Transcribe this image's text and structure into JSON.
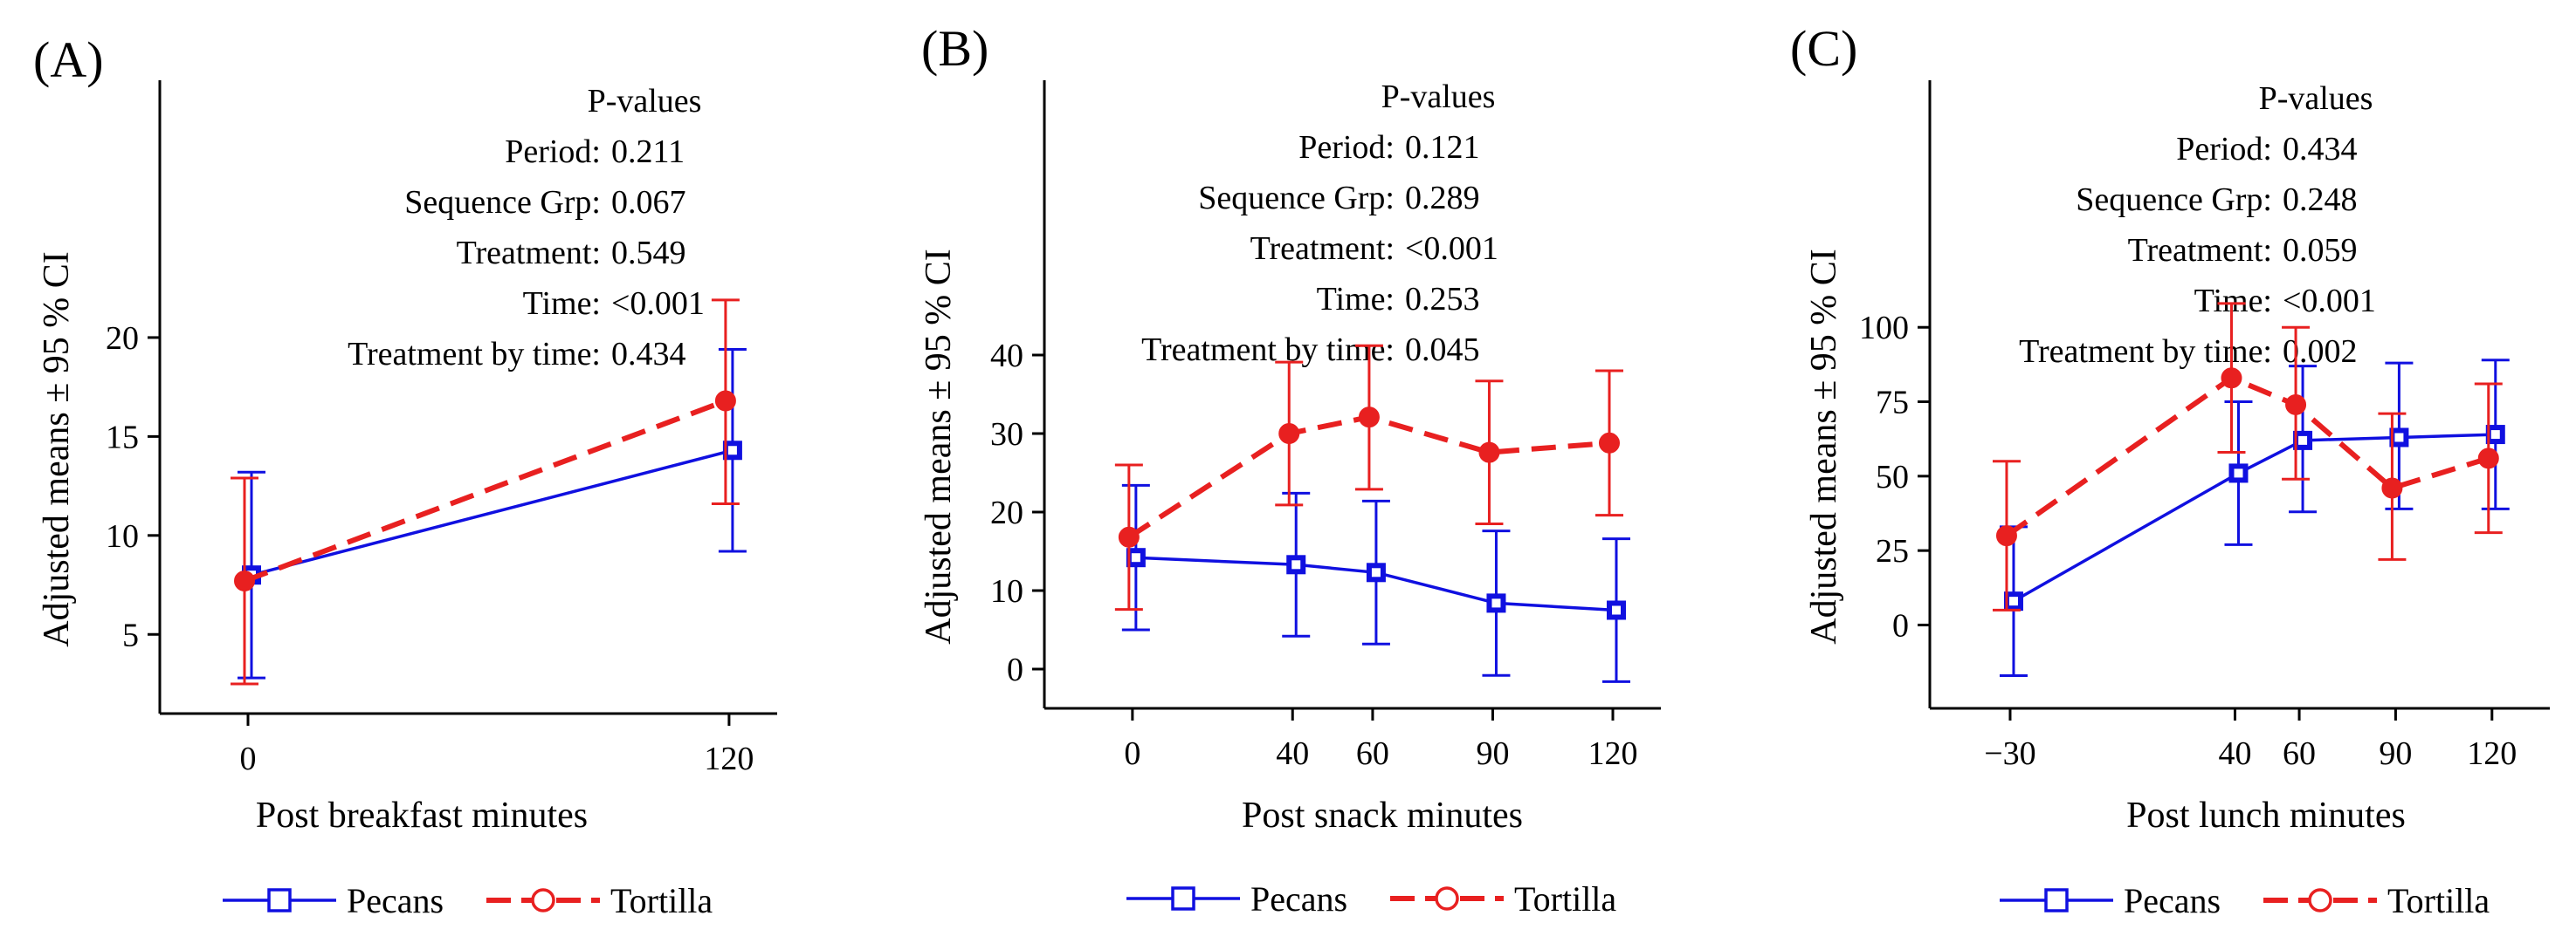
{
  "legend": {
    "series_colors": {
      "Pecans": "#1010e0",
      "Tortilla": "#e82020"
    }
  },
  "chart_data": [
    {
      "type": "line",
      "panel_label": "(A)",
      "xlabel": "Post breakfast minutes",
      "ylabel": "Adjusted means ± 95 % CI",
      "x": [
        0,
        120
      ],
      "x_ticks": [
        0,
        120
      ],
      "x_tick_labels": [
        "0",
        "120"
      ],
      "xlim": [
        -22,
        132
      ],
      "y_ticks": [
        5,
        10,
        15,
        20
      ],
      "y_tick_labels": [
        "5",
        "10",
        "15",
        "20"
      ],
      "ylim": [
        1,
        33
      ],
      "pvalues": {
        "header": "P-values",
        "rows": [
          {
            "label": "Period:",
            "value": "0.211"
          },
          {
            "label": "Sequence Grp:",
            "value": "0.067"
          },
          {
            "label": "Treatment:",
            "value": "0.549"
          },
          {
            "label": "Time:",
            "value": "<0.001"
          },
          {
            "label": "Treatment by time:",
            "value": "0.434"
          }
        ]
      },
      "series": [
        {
          "name": "Pecans",
          "color": "#1010e0",
          "marker": "square",
          "dash": "solid",
          "values": [
            8.0,
            14.3
          ],
          "lower": [
            2.8,
            9.2
          ],
          "upper": [
            13.2,
            19.4
          ]
        },
        {
          "name": "Tortilla",
          "color": "#e82020",
          "marker": "circle",
          "dash": "dashed",
          "values": [
            7.7,
            16.8
          ],
          "lower": [
            2.5,
            11.6
          ],
          "upper": [
            12.9,
            21.9
          ]
        }
      ],
      "legend": [
        {
          "name": "Pecans",
          "marker": "square"
        },
        {
          "name": "Tortilla",
          "marker": "circle"
        }
      ]
    },
    {
      "type": "line",
      "panel_label": "(B)",
      "xlabel": "Post snack minutes",
      "ylabel": "Adjusted means ± 95 % CI",
      "x": [
        0,
        40,
        60,
        90,
        120
      ],
      "x_ticks": [
        0,
        40,
        60,
        90,
        120
      ],
      "x_tick_labels": [
        "0",
        "40",
        "60",
        "90",
        "120"
      ],
      "xlim": [
        -22,
        132
      ],
      "y_ticks": [
        0,
        10,
        20,
        30,
        40
      ],
      "y_tick_labels": [
        "0",
        "10",
        "20",
        "30",
        "40"
      ],
      "ylim": [
        -5,
        75
      ],
      "pvalues": {
        "header": "P-values",
        "rows": [
          {
            "label": "Period:",
            "value": "0.121"
          },
          {
            "label": "Sequence Grp:",
            "value": "0.289"
          },
          {
            "label": "Treatment:",
            "value": "<0.001"
          },
          {
            "label": "Time:",
            "value": "0.253"
          },
          {
            "label": "Treatment by time:",
            "value": "0.045"
          }
        ]
      },
      "series": [
        {
          "name": "Pecans",
          "color": "#1010e0",
          "marker": "square",
          "dash": "solid",
          "values": [
            14.2,
            13.3,
            12.3,
            8.4,
            7.5
          ],
          "lower": [
            5.0,
            4.2,
            3.2,
            -0.8,
            -1.6
          ],
          "upper": [
            23.4,
            22.4,
            21.4,
            17.6,
            16.6
          ]
        },
        {
          "name": "Tortilla",
          "color": "#e82020",
          "marker": "circle",
          "dash": "dashed",
          "values": [
            16.8,
            30.0,
            32.1,
            27.6,
            28.8
          ],
          "lower": [
            7.6,
            20.9,
            22.9,
            18.5,
            19.6
          ],
          "upper": [
            26.0,
            39.1,
            41.2,
            36.7,
            38.0
          ]
        }
      ],
      "legend": [
        {
          "name": "Pecans",
          "marker": "square"
        },
        {
          "name": "Tortilla",
          "marker": "circle"
        }
      ]
    },
    {
      "type": "line",
      "panel_label": "(C)",
      "xlabel": "Post lunch minutes",
      "ylabel": "Adjusted means ± 95 % CI",
      "x": [
        -30,
        40,
        60,
        90,
        120
      ],
      "x_ticks": [
        -30,
        40,
        60,
        90,
        120
      ],
      "x_tick_labels": [
        "−30",
        "40",
        "60",
        "90",
        "120"
      ],
      "xlim": [
        -55,
        138
      ],
      "y_ticks": [
        0,
        25,
        50,
        75,
        100
      ],
      "y_tick_labels": [
        "0",
        "25",
        "50",
        "75",
        "100"
      ],
      "ylim": [
        -28,
        183
      ],
      "pvalues": {
        "header": "P-values",
        "rows": [
          {
            "label": "Period:",
            "value": "0.434"
          },
          {
            "label": "Sequence Grp:",
            "value": "0.248"
          },
          {
            "label": "Treatment:",
            "value": "0.059"
          },
          {
            "label": "Time:",
            "value": "<0.001"
          },
          {
            "label": "Treatment by time:",
            "value": "0.002"
          }
        ]
      },
      "series": [
        {
          "name": "Pecans",
          "color": "#1010e0",
          "marker": "square",
          "dash": "solid",
          "values": [
            8,
            51,
            62,
            63,
            64
          ],
          "lower": [
            -17,
            27,
            38,
            39,
            39
          ],
          "upper": [
            33,
            75,
            87,
            88,
            89
          ]
        },
        {
          "name": "Tortilla",
          "color": "#e82020",
          "marker": "circle",
          "dash": "dashed",
          "values": [
            30,
            83,
            74,
            46,
            56
          ],
          "lower": [
            5,
            58,
            49,
            22,
            31
          ],
          "upper": [
            55,
            108,
            100,
            71,
            81
          ]
        }
      ],
      "legend": [
        {
          "name": "Pecans",
          "marker": "square"
        },
        {
          "name": "Tortilla",
          "marker": "circle"
        }
      ]
    }
  ]
}
